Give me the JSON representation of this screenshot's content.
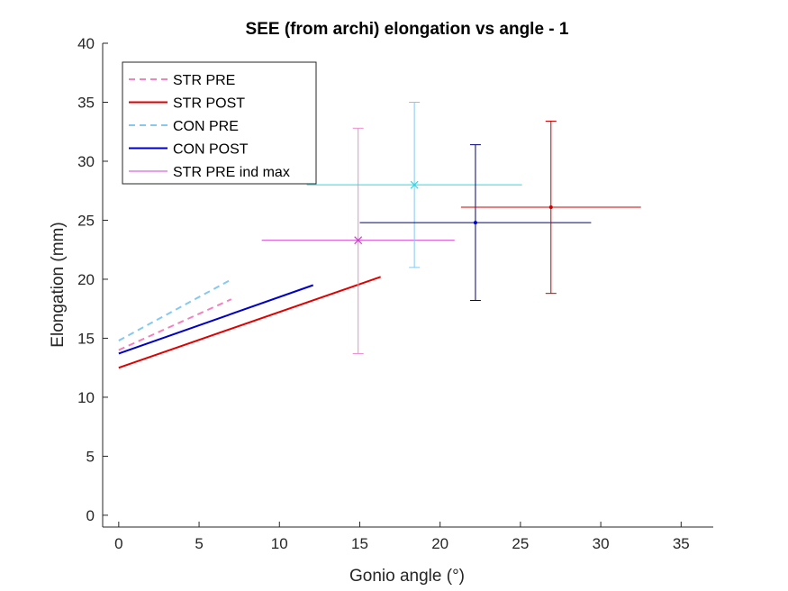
{
  "chart_data": {
    "type": "line",
    "title": "SEE (from archi) elongation vs angle - 1",
    "xlabel": "Gonio angle (°)",
    "ylabel": "Elongation (mm)",
    "xlim": [
      -1,
      37
    ],
    "ylim": [
      -1,
      40
    ],
    "xticks": [
      0,
      5,
      10,
      15,
      20,
      25,
      30,
      35
    ],
    "yticks": [
      0,
      5,
      10,
      15,
      20,
      25,
      30,
      35,
      40
    ],
    "xtick_labels": [
      "0",
      "5",
      "10",
      "15",
      "20",
      "25",
      "30",
      "35"
    ],
    "ytick_labels": [
      "0",
      "5",
      "10",
      "15",
      "20",
      "25",
      "30",
      "35",
      "40"
    ],
    "grid": false,
    "legend_position": "top-left",
    "series": [
      {
        "name": "STR PRE",
        "color": "#f57fbf",
        "dash": true,
        "width": 2,
        "x": [
          0,
          7
        ],
        "y": [
          14.0,
          18.3
        ]
      },
      {
        "name": "STR POST",
        "color": "#e00000",
        "dash": false,
        "width": 2,
        "x": [
          0,
          16.3
        ],
        "y": [
          12.5,
          20.2
        ]
      },
      {
        "name": "CON PRE",
        "color": "#85c8f2",
        "dash": true,
        "width": 2,
        "x": [
          0,
          6.9
        ],
        "y": [
          14.8,
          19.9
        ]
      },
      {
        "name": "CON POST",
        "color": "#0000c8",
        "dash": false,
        "width": 2,
        "x": [
          0,
          12.1
        ],
        "y": [
          13.7,
          19.5
        ]
      },
      {
        "name": "STR PRE ind max",
        "color": "#d23cd2",
        "dash": false,
        "width": 1,
        "x": [],
        "y": []
      }
    ],
    "errorbars": [
      {
        "x": 14.9,
        "y": 23.3,
        "xerr": 6.0,
        "yerr_low": 9.6,
        "yerr_high": 9.5,
        "hcolor": "#d23cd2",
        "vcolor": "#f08ccf",
        "marker": "x",
        "mcolor": "#d23cd2"
      },
      {
        "x": 18.4,
        "y": 28.0,
        "xerr": 6.7,
        "yerr_low": 7.0,
        "yerr_high": 7.0,
        "hcolor": "#2ed9e3",
        "vcolor": "#85c8f2",
        "marker": "x",
        "mcolor": "#2ed9e3"
      },
      {
        "x": 22.2,
        "y": 24.8,
        "xerr": 7.2,
        "yerr_low": 6.6,
        "yerr_high": 6.6,
        "hcolor": "#00007a",
        "vcolor": "#00007a",
        "marker": "dot",
        "mcolor": "#0000c8"
      },
      {
        "x": 26.9,
        "y": 26.1,
        "xerr": 5.6,
        "yerr_low": 7.3,
        "yerr_high": 7.3,
        "hcolor": "#c80000",
        "vcolor": "#c80000",
        "marker": "dot",
        "mcolor": "#c80000"
      }
    ]
  }
}
